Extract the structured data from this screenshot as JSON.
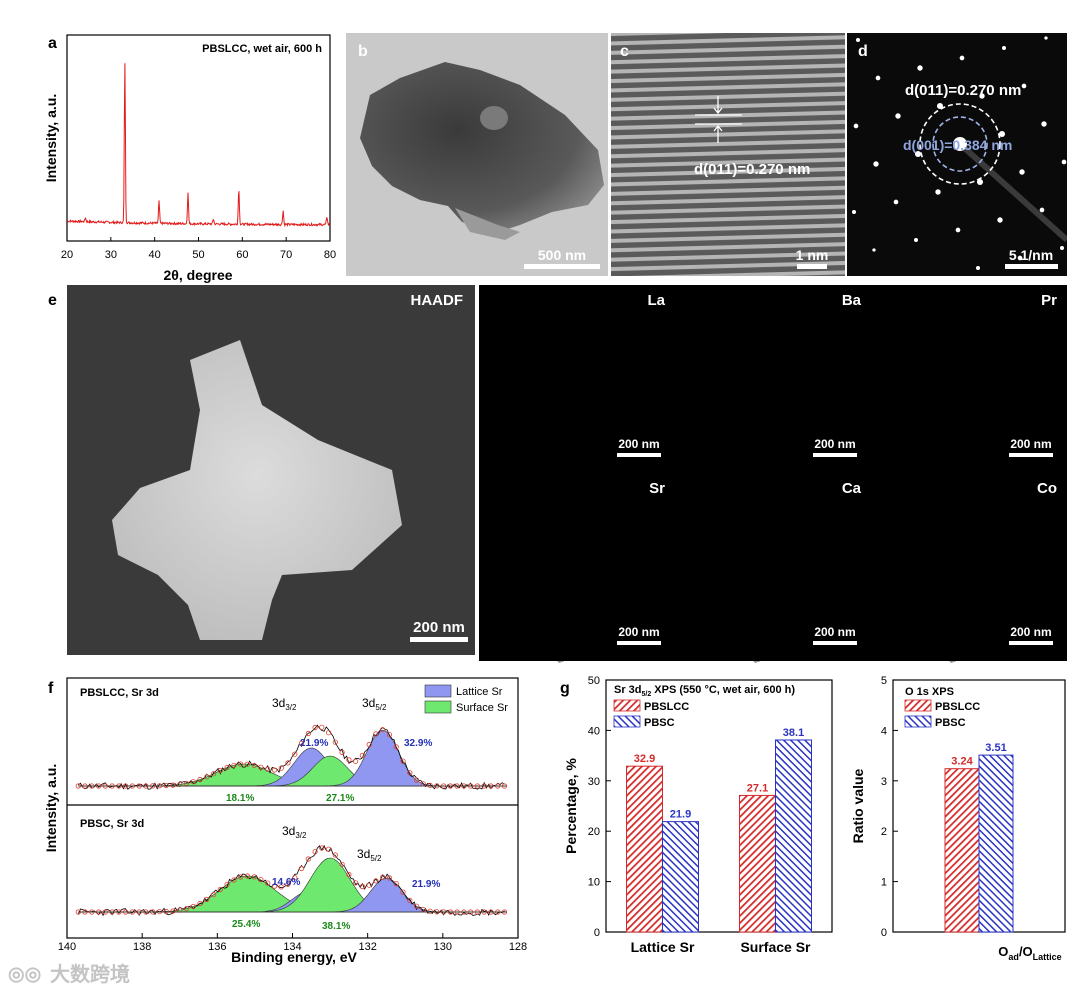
{
  "panel_letters": [
    "a",
    "b",
    "c",
    "d",
    "e",
    "f",
    "g"
  ],
  "a": {
    "title": "PBSLCC, wet air, 600 h",
    "ylabel": "Intensity, a.u.",
    "xlabel": "2θ, degree",
    "xticks": [
      "20",
      "30",
      "40",
      "50",
      "60",
      "70",
      "80"
    ]
  },
  "b": {
    "scale": "500 nm"
  },
  "c": {
    "label": "d(011)=0.270 nm",
    "scale": "1 nm"
  },
  "d": {
    "label1": "d(011)=0.270 nm",
    "label2": "d(001)=0.384 nm",
    "scale": "5 1/nm"
  },
  "e": {
    "haadf_label": "HAADF",
    "haadf_scale": "200 nm",
    "maps": [
      {
        "element": "La",
        "scale": "200 nm",
        "color": "#e0201c"
      },
      {
        "element": "Ba",
        "scale": "200 nm",
        "color": "#29d4d0"
      },
      {
        "element": "Pr",
        "scale": "200 nm",
        "color": "#d62ad6"
      },
      {
        "element": "Sr",
        "scale": "200 nm",
        "color": "#28b428"
      },
      {
        "element": "Ca",
        "scale": "200 nm",
        "color": "#d6c420"
      },
      {
        "element": "Co",
        "scale": "200 nm",
        "color": "#ff8a10"
      }
    ]
  },
  "f": {
    "top_title": "PBSLCC, Sr 3d",
    "bottom_title": "PBSC, Sr 3d",
    "peak_32": "3d3/2",
    "peak_52": "3d5/2",
    "legend": [
      "Lattice Sr",
      "Surface Sr"
    ],
    "top_pct": [
      "21.9%",
      "32.9%",
      "18.1%",
      "27.1%"
    ],
    "bottom_pct": [
      "14.6%",
      "21.9%",
      "25.4%",
      "38.1%"
    ],
    "ylabel": "Intensity, a.u.",
    "xlabel": "Binding energy, eV",
    "xticks": [
      "140",
      "138",
      "136",
      "134",
      "132",
      "130",
      "128"
    ],
    "colors": {
      "lattice": "#8f97f0",
      "surface": "#6ee86e"
    }
  },
  "chart_data": [
    {
      "type": "bar",
      "title": "Sr 3d5/2 XPS (550 °C, wet air, 600 h)",
      "categories": [
        "Lattice Sr",
        "Surface Sr"
      ],
      "series": [
        {
          "name": "PBSLCC",
          "values": [
            32.9,
            27.1
          ],
          "color": "#d42a2a"
        },
        {
          "name": "PBSC",
          "values": [
            21.9,
            38.1
          ],
          "color": "#2a34c4"
        }
      ],
      "value_labels": {
        "PBSLCC": [
          "32.9",
          "27.1"
        ],
        "PBSC": [
          "21.9",
          "38.1"
        ]
      },
      "ylabel": "Percentage, %",
      "ylim": [
        0,
        50
      ],
      "yticks": [
        "0",
        "10",
        "20",
        "30",
        "40",
        "50"
      ]
    },
    {
      "type": "bar",
      "title": "O 1s XPS",
      "categories": [
        "Oad/OLattice"
      ],
      "series": [
        {
          "name": "PBSLCC",
          "values": [
            3.24
          ],
          "color": "#d42a2a"
        },
        {
          "name": "PBSC",
          "values": [
            3.51
          ],
          "color": "#2a34c4"
        }
      ],
      "value_labels": {
        "PBSLCC": [
          "3.24"
        ],
        "PBSC": [
          "3.51"
        ]
      },
      "ylabel": "Ratio value",
      "ylim": [
        0,
        5
      ],
      "yticks": [
        "0",
        "1",
        "2",
        "3",
        "4",
        "5"
      ]
    }
  ],
  "watermark": "大数跨境"
}
